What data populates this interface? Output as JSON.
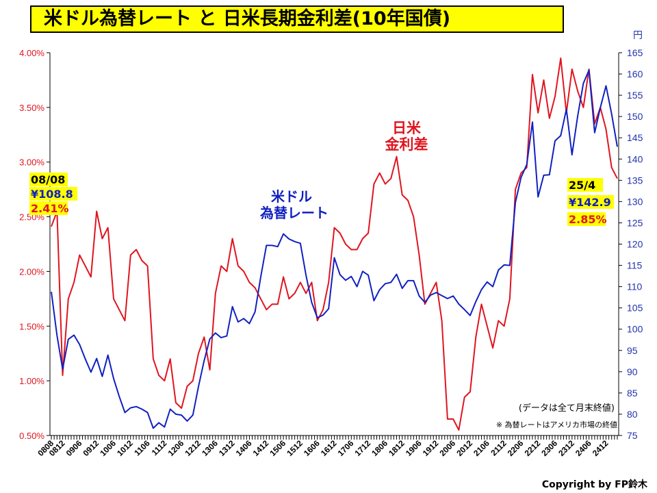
{
  "title": "米ドル為替レート と 日米長期金利差(10年国債)",
  "right_unit": "円",
  "labels": {
    "rate_series": "米ドル\n為替レート",
    "spread_series": "日米\n金利差",
    "start_date": "08/08",
    "start_rate": "¥108.8",
    "start_spread": "2.41%",
    "end_date": "25/4",
    "end_rate": "¥142.9",
    "end_spread": "2.85%",
    "note1": "(データは全て月末終値)",
    "note2": "※ 為替レートはアメリカ市場の終値",
    "copyright": "Copyright by FP鈴木"
  },
  "colors": {
    "rate": "#1020c0",
    "spread": "#e0141e",
    "highlight": "#ffff00"
  },
  "chart_data": {
    "type": "line",
    "title": "米ドル為替レート と 日米長期金利差(10年国債)",
    "left_axis": {
      "ticks": [
        "0.50%",
        "1.00%",
        "1.50%",
        "2.00%",
        "2.50%",
        "3.00%",
        "3.50%",
        "4.00%"
      ],
      "ylim": [
        0.5,
        4.0
      ]
    },
    "right_axis": {
      "unit": "円",
      "ticks": [
        "75",
        "80",
        "85",
        "90",
        "95",
        "100",
        "105",
        "110",
        "115",
        "120",
        "125",
        "130",
        "135",
        "140",
        "145",
        "150",
        "155",
        "160",
        "165"
      ],
      "ylim": [
        75,
        165
      ]
    },
    "x_ticks": [
      "0808",
      "0812",
      "0906",
      "0912",
      "1006",
      "1012",
      "1106",
      "1112",
      "1206",
      "1212",
      "1306",
      "1312",
      "1406",
      "1412",
      "1506",
      "1512",
      "1606",
      "1612",
      "1706",
      "1712",
      "1806",
      "1812",
      "1906",
      "1912",
      "2006",
      "2012",
      "2106",
      "2112",
      "2206",
      "2212",
      "2306",
      "2312",
      "2406",
      "2412"
    ],
    "grid": false,
    "series": [
      {
        "name": "米ドル為替レート",
        "axis": "right",
        "anchors": [
          [
            "2008-08",
            108.8
          ],
          [
            "2008-10",
            98.5
          ],
          [
            "2008-12",
            90.6
          ],
          [
            "2009-02",
            97.6
          ],
          [
            "2009-04",
            98.6
          ],
          [
            "2009-06",
            96.4
          ],
          [
            "2009-08",
            93.0
          ],
          [
            "2009-10",
            89.9
          ],
          [
            "2009-12",
            93.1
          ],
          [
            "2010-02",
            88.9
          ],
          [
            "2010-04",
            93.9
          ],
          [
            "2010-06",
            88.4
          ],
          [
            "2010-08",
            84.2
          ],
          [
            "2010-10",
            80.4
          ],
          [
            "2010-12",
            81.5
          ],
          [
            "2011-02",
            81.8
          ],
          [
            "2011-04",
            81.2
          ],
          [
            "2011-06",
            80.4
          ],
          [
            "2011-08",
            76.7
          ],
          [
            "2011-10",
            78.0
          ],
          [
            "2011-12",
            77.0
          ],
          [
            "2012-02",
            81.2
          ],
          [
            "2012-04",
            80.0
          ],
          [
            "2012-06",
            79.8
          ],
          [
            "2012-08",
            78.4
          ],
          [
            "2012-10",
            79.8
          ],
          [
            "2012-12",
            86.5
          ],
          [
            "2013-02",
            92.6
          ],
          [
            "2013-04",
            97.7
          ],
          [
            "2013-06",
            99.1
          ],
          [
            "2013-08",
            98.0
          ],
          [
            "2013-10",
            98.4
          ],
          [
            "2013-12",
            105.3
          ],
          [
            "2014-02",
            101.7
          ],
          [
            "2014-04",
            102.5
          ],
          [
            "2014-06",
            101.3
          ],
          [
            "2014-08",
            104.1
          ],
          [
            "2014-10",
            112.3
          ],
          [
            "2014-12",
            119.7
          ],
          [
            "2015-02",
            119.7
          ],
          [
            "2015-04",
            119.4
          ],
          [
            "2015-06",
            122.4
          ],
          [
            "2015-08",
            121.2
          ],
          [
            "2015-10",
            120.6
          ],
          [
            "2015-12",
            120.2
          ],
          [
            "2016-02",
            112.7
          ],
          [
            "2016-04",
            106.3
          ],
          [
            "2016-06",
            102.7
          ],
          [
            "2016-08",
            103.3
          ],
          [
            "2016-10",
            104.8
          ],
          [
            "2016-12",
            116.8
          ],
          [
            "2017-02",
            112.8
          ],
          [
            "2017-04",
            111.5
          ],
          [
            "2017-06",
            112.4
          ],
          [
            "2017-08",
            110.0
          ],
          [
            "2017-10",
            113.6
          ],
          [
            "2017-12",
            112.7
          ],
          [
            "2018-02",
            106.7
          ],
          [
            "2018-04",
            109.3
          ],
          [
            "2018-06",
            110.7
          ],
          [
            "2018-08",
            111.0
          ],
          [
            "2018-10",
            112.9
          ],
          [
            "2018-12",
            109.6
          ],
          [
            "2019-02",
            111.4
          ],
          [
            "2019-04",
            111.4
          ],
          [
            "2019-06",
            107.8
          ],
          [
            "2019-08",
            106.3
          ],
          [
            "2019-10",
            108.0
          ],
          [
            "2019-12",
            108.6
          ],
          [
            "2020-02",
            107.9
          ],
          [
            "2020-04",
            107.2
          ],
          [
            "2020-06",
            107.8
          ],
          [
            "2020-08",
            105.9
          ],
          [
            "2020-10",
            104.6
          ],
          [
            "2020-12",
            103.2
          ],
          [
            "2021-02",
            106.5
          ],
          [
            "2021-04",
            109.3
          ],
          [
            "2021-06",
            111.1
          ],
          [
            "2021-08",
            110.0
          ],
          [
            "2021-10",
            113.9
          ],
          [
            "2021-12",
            115.1
          ],
          [
            "2022-02",
            115.0
          ],
          [
            "2022-04",
            129.8
          ],
          [
            "2022-06",
            135.7
          ],
          [
            "2022-08",
            138.7
          ],
          [
            "2022-10",
            148.7
          ],
          [
            "2022-12",
            131.1
          ],
          [
            "2023-02",
            136.2
          ],
          [
            "2023-04",
            136.3
          ],
          [
            "2023-06",
            144.3
          ],
          [
            "2023-08",
            145.5
          ],
          [
            "2023-10",
            151.7
          ],
          [
            "2023-12",
            141.0
          ],
          [
            "2024-02",
            150.1
          ],
          [
            "2024-04",
            157.8
          ],
          [
            "2024-06",
            160.9
          ],
          [
            "2024-08",
            146.2
          ],
          [
            "2024-10",
            152.1
          ],
          [
            "2024-12",
            157.2
          ],
          [
            "2025-02",
            150.6
          ],
          [
            "2025-04",
            142.9
          ]
        ]
      },
      {
        "name": "日米金利差",
        "axis": "left",
        "anchors": [
          [
            "2008-08",
            2.41
          ],
          [
            "2008-10",
            2.55
          ],
          [
            "2008-12",
            1.05
          ],
          [
            "2009-02",
            1.75
          ],
          [
            "2009-04",
            1.9
          ],
          [
            "2009-06",
            2.15
          ],
          [
            "2009-08",
            2.05
          ],
          [
            "2009-10",
            1.95
          ],
          [
            "2009-12",
            2.55
          ],
          [
            "2010-02",
            2.3
          ],
          [
            "2010-04",
            2.4
          ],
          [
            "2010-06",
            1.75
          ],
          [
            "2010-08",
            1.65
          ],
          [
            "2010-10",
            1.55
          ],
          [
            "2010-12",
            2.15
          ],
          [
            "2011-02",
            2.2
          ],
          [
            "2011-04",
            2.1
          ],
          [
            "2011-06",
            2.05
          ],
          [
            "2011-08",
            1.2
          ],
          [
            "2011-10",
            1.05
          ],
          [
            "2011-12",
            1.0
          ],
          [
            "2012-02",
            1.2
          ],
          [
            "2012-04",
            0.8
          ],
          [
            "2012-06",
            0.75
          ],
          [
            "2012-08",
            0.95
          ],
          [
            "2012-10",
            1.0
          ],
          [
            "2012-12",
            1.25
          ],
          [
            "2013-02",
            1.4
          ],
          [
            "2013-04",
            1.1
          ],
          [
            "2013-06",
            1.8
          ],
          [
            "2013-08",
            2.05
          ],
          [
            "2013-10",
            2.0
          ],
          [
            "2013-12",
            2.3
          ],
          [
            "2014-02",
            2.05
          ],
          [
            "2014-04",
            2.0
          ],
          [
            "2014-06",
            1.9
          ],
          [
            "2014-08",
            1.85
          ],
          [
            "2014-10",
            1.75
          ],
          [
            "2014-12",
            1.65
          ],
          [
            "2015-02",
            1.7
          ],
          [
            "2015-04",
            1.7
          ],
          [
            "2015-06",
            1.95
          ],
          [
            "2015-08",
            1.75
          ],
          [
            "2015-10",
            1.8
          ],
          [
            "2015-12",
            1.9
          ],
          [
            "2016-02",
            1.8
          ],
          [
            "2016-04",
            1.9
          ],
          [
            "2016-06",
            1.55
          ],
          [
            "2016-08",
            1.65
          ],
          [
            "2016-10",
            1.9
          ],
          [
            "2016-12",
            2.4
          ],
          [
            "2017-02",
            2.35
          ],
          [
            "2017-04",
            2.25
          ],
          [
            "2017-06",
            2.2
          ],
          [
            "2017-08",
            2.2
          ],
          [
            "2017-10",
            2.3
          ],
          [
            "2017-12",
            2.35
          ],
          [
            "2018-02",
            2.8
          ],
          [
            "2018-04",
            2.9
          ],
          [
            "2018-06",
            2.8
          ],
          [
            "2018-08",
            2.85
          ],
          [
            "2018-10",
            3.05
          ],
          [
            "2018-12",
            2.7
          ],
          [
            "2019-02",
            2.65
          ],
          [
            "2019-04",
            2.5
          ],
          [
            "2019-06",
            2.15
          ],
          [
            "2019-08",
            1.7
          ],
          [
            "2019-10",
            1.8
          ],
          [
            "2019-12",
            1.9
          ],
          [
            "2020-02",
            1.55
          ],
          [
            "2020-04",
            0.65
          ],
          [
            "2020-06",
            0.65
          ],
          [
            "2020-08",
            0.55
          ],
          [
            "2020-10",
            0.85
          ],
          [
            "2020-12",
            0.9
          ],
          [
            "2021-02",
            1.4
          ],
          [
            "2021-04",
            1.7
          ],
          [
            "2021-06",
            1.5
          ],
          [
            "2021-08",
            1.3
          ],
          [
            "2021-10",
            1.55
          ],
          [
            "2021-12",
            1.5
          ],
          [
            "2022-02",
            1.75
          ],
          [
            "2022-04",
            2.75
          ],
          [
            "2022-06",
            2.9
          ],
          [
            "2022-08",
            2.95
          ],
          [
            "2022-10",
            3.8
          ],
          [
            "2022-12",
            3.45
          ],
          [
            "2023-02",
            3.75
          ],
          [
            "2023-04",
            3.4
          ],
          [
            "2023-06",
            3.6
          ],
          [
            "2023-08",
            3.95
          ],
          [
            "2023-10",
            3.45
          ],
          [
            "2023-12",
            3.85
          ],
          [
            "2024-02",
            3.65
          ],
          [
            "2024-04",
            3.5
          ],
          [
            "2024-06",
            3.85
          ],
          [
            "2024-08",
            3.35
          ],
          [
            "2024-10",
            3.5
          ],
          [
            "2024-12",
            3.3
          ],
          [
            "2025-02",
            2.95
          ],
          [
            "2025-04",
            2.85
          ]
        ]
      }
    ]
  }
}
